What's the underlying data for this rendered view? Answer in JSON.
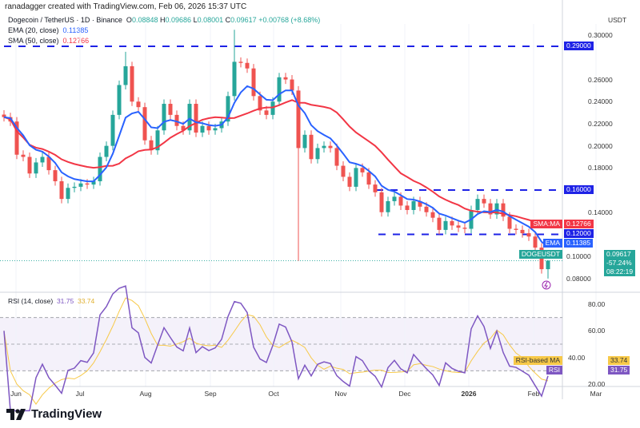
{
  "credit": "ranadagger created with TradingView.com, Feb 06, 2026 15:37 UTC",
  "legend": {
    "symbol": "Dogecoin / TetherUS · 1D · Binance",
    "o_label": "O",
    "o": "0.08848",
    "h_label": "H",
    "h": "0.09686",
    "l_label": "L",
    "l": "0.08001",
    "c_label": "C",
    "c": "0.09617",
    "change": "+0.00768 (+8.68%)",
    "ema_label": "EMA (20, close)",
    "ema_value": "0.11385",
    "sma_label": "SMA (50, close)",
    "sma_value": "0.12766"
  },
  "price_axis": {
    "currency": "USDT",
    "ticks": [
      "0.30000",
      "0.26000",
      "0.24000",
      "0.22000",
      "0.20000",
      "0.18000",
      "0.14000",
      "0.10000",
      "0.08000"
    ],
    "tags": {
      "level_290": "0.29000",
      "level_160": "0.16000",
      "level_120": "0.12000",
      "sma_name": "SMA:MA",
      "sma_value": "0.12766",
      "ema_name": "EMA",
      "ema_value": "0.11385",
      "symbol_name": "DOGEUSDT",
      "last_price": "0.09617",
      "last_change": "-57.24%",
      "countdown": "08:22:19"
    }
  },
  "rsi": {
    "label": "RSI (14, close)",
    "value": "31.75",
    "ma_value": "33.74",
    "ticks": [
      "80.00",
      "60.00",
      "40.00",
      "20.00"
    ],
    "ma_tag_name": "RSI-based MA",
    "rsi_tag_name": "RSI"
  },
  "time_axis": [
    "Jun",
    "Jul",
    "Aug",
    "Sep",
    "Oct",
    "Nov",
    "Dec",
    "2026",
    "Feb",
    "Mar"
  ],
  "logo_text": "TradingView",
  "colors": {
    "up": "#26a69a",
    "down": "#ef5350",
    "ema": "#2962ff",
    "sma": "#f23645",
    "levels": "#1e22e6",
    "rsi": "#7e57c2",
    "rsi_ma": "#f7c948"
  },
  "chart_data": {
    "type": "candlestick",
    "timeframe": "1D",
    "y_range": [
      0.075,
      0.31
    ],
    "horizontal_levels": [
      0.29,
      0.16,
      0.12
    ],
    "closes": [
      0.226,
      0.222,
      0.192,
      0.19,
      0.175,
      0.185,
      0.19,
      0.178,
      0.168,
      0.152,
      0.162,
      0.163,
      0.166,
      0.165,
      0.168,
      0.19,
      0.2,
      0.228,
      0.255,
      0.272,
      0.24,
      0.235,
      0.205,
      0.196,
      0.214,
      0.238,
      0.228,
      0.218,
      0.214,
      0.238,
      0.212,
      0.218,
      0.214,
      0.216,
      0.222,
      0.245,
      0.276,
      0.275,
      0.27,
      0.245,
      0.232,
      0.228,
      0.24,
      0.262,
      0.26,
      0.25,
      0.198,
      0.21,
      0.188,
      0.198,
      0.2,
      0.198,
      0.182,
      0.172,
      0.163,
      0.18,
      0.176,
      0.165,
      0.158,
      0.14,
      0.15,
      0.154,
      0.146,
      0.142,
      0.15,
      0.145,
      0.14,
      0.135,
      0.124,
      0.132,
      0.128,
      0.126,
      0.125,
      0.142,
      0.152,
      0.148,
      0.138,
      0.148,
      0.136,
      0.125,
      0.124,
      0.121,
      0.118,
      0.108,
      0.08848,
      0.09617
    ],
    "notable_wicks": [
      {
        "index": 19,
        "high": 0.285
      },
      {
        "index": 36,
        "high": 0.305
      },
      {
        "index": 46,
        "low": 0.096
      },
      {
        "index": 85,
        "high": 0.09686,
        "low": 0.08001
      }
    ],
    "rsi_ylim": [
      15,
      90
    ],
    "rsi_bands": [
      70,
      50,
      30
    ]
  }
}
